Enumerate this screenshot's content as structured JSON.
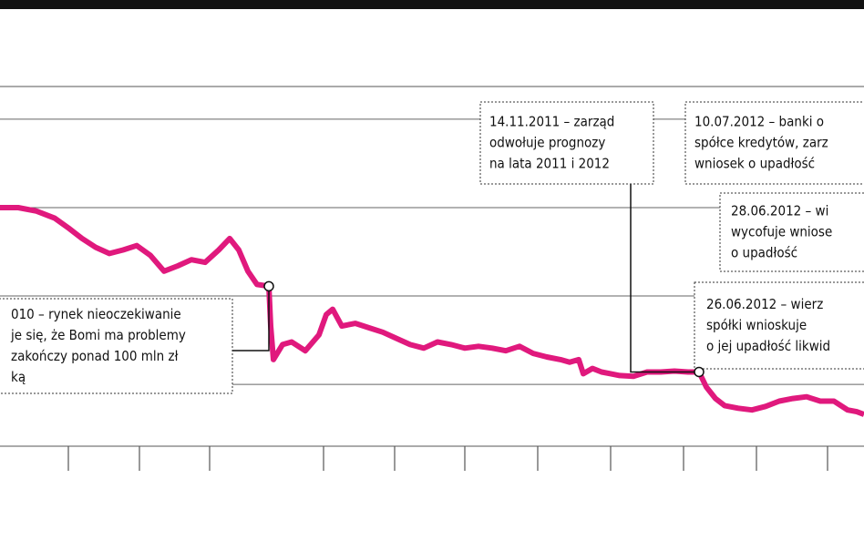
{
  "chart_data": {
    "type": "line",
    "x": [
      0,
      20,
      40,
      60,
      75,
      90,
      105,
      120,
      135,
      150,
      165,
      180,
      195,
      210,
      225,
      240,
      252,
      262,
      272,
      282,
      295,
      297,
      300,
      310,
      320,
      335,
      350,
      358,
      365,
      375,
      390,
      405,
      420,
      435,
      450,
      465,
      480,
      495,
      510,
      525,
      540,
      555,
      570,
      585,
      600,
      615,
      625,
      635,
      640,
      650,
      660,
      670,
      680,
      695,
      710,
      725,
      740,
      755,
      767,
      775,
      785,
      795,
      810,
      825,
      840,
      855,
      870,
      885,
      900,
      915,
      930,
      940,
      948
    ],
    "series": [
      {
        "color": "#e0197d",
        "values": [
          30.0,
          30.0,
          29.6,
          28.8,
          27.7,
          26.5,
          25.5,
          24.8,
          25.2,
          25.7,
          24.6,
          22.8,
          23.4,
          24.1,
          23.8,
          25.2,
          26.5,
          25.2,
          22.8,
          21.3,
          21.1,
          16.6,
          12.8,
          14.5,
          14.8,
          13.8,
          15.6,
          17.9,
          18.5,
          16.6,
          16.9,
          16.4,
          15.9,
          15.2,
          14.5,
          14.1,
          14.8,
          14.5,
          14.1,
          14.3,
          14.1,
          13.8,
          14.3,
          13.5,
          13.1,
          12.8,
          12.5,
          12.8,
          11.2,
          11.8,
          11.4,
          11.2,
          11.0,
          10.9,
          11.4,
          11.4,
          11.5,
          11.4,
          11.4,
          9.7,
          8.4,
          7.6,
          7.3,
          7.1,
          7.5,
          8.1,
          8.4,
          8.6,
          8.1,
          8.1,
          7.1,
          6.9,
          6.6
        ]
      }
    ],
    "xlim": [
      0,
      948
    ],
    "xticks": [
      75,
      153,
      230,
      355,
      433,
      510,
      590,
      670,
      750,
      830,
      908
    ],
    "ylim": [
      3,
      43.7
    ],
    "yticks": [
      10,
      20,
      30,
      40
    ],
    "grid": true,
    "annotations": [
      {
        "lines": [
          "010 – rynek nieoczekiwanie",
          "je się, że Bomi ma problemy",
          "zakończy ponad 100 mln zł",
          "ką"
        ],
        "point": 20
      },
      {
        "lines": [
          "14.11.2011 – zarząd",
          "odwołuje prognozy",
          "na lata 2011 i 2012"
        ]
      },
      {
        "lines": [
          "10.07.2012 – banki o",
          "spółce kredytów, zarz",
          "wniosek o upadłość"
        ]
      },
      {
        "lines": [
          "28.06.2012 – wi",
          "wycofuje wniose",
          "o upadłość"
        ]
      },
      {
        "lines": [
          "26.06.2012 – wierz",
          "spółki wnioskuje",
          "o jej upadłość likwid"
        ],
        "point": 58
      }
    ]
  }
}
